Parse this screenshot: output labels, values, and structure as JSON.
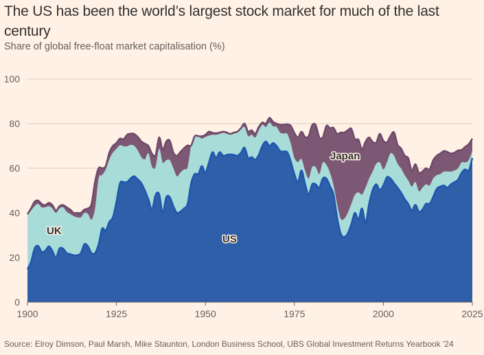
{
  "header": {
    "title": "The US has been the world’s largest stock market for much of the last century",
    "subtitle": "Share of global free-float market capitalisation (%)"
  },
  "footer": {
    "source": "Source: Elroy Dimson, Paul Marsh, Mike Staunton, London Business School, UBS Global Investment Returns Yearbook '24"
  },
  "colors": {
    "background": "#fff1e5",
    "us_fill": "#2e5fa8",
    "us_line": "#1f56ad",
    "uk_fill": "#a8dcd9",
    "uk_line": "#a8dcd9",
    "japan_fill": "#7d5875",
    "japan_line": "#6e4a68",
    "grid": "#d9cbbf",
    "axis": "#66605c"
  },
  "chart_data": {
    "type": "area",
    "stacked": true,
    "title": "The US has been the world’s largest stock market for much of the last century",
    "subtitle": "Share of global free-float market capitalisation (%)",
    "xlabel": "",
    "ylabel": "",
    "xlim": [
      1900,
      2025
    ],
    "ylim": [
      0,
      100
    ],
    "x_ticks": [
      "1900",
      "1925",
      "1950",
      "1975",
      "2000",
      "2025"
    ],
    "y_ticks": [
      "0",
      "20",
      "40",
      "60",
      "80",
      "100"
    ],
    "grid": true,
    "legend": "inline labels",
    "annotations": [
      "US",
      "UK",
      "Japan"
    ],
    "x": [
      1900,
      1901,
      1902,
      1903,
      1904,
      1905,
      1906,
      1907,
      1908,
      1909,
      1910,
      1911,
      1912,
      1913,
      1914,
      1915,
      1916,
      1917,
      1918,
      1919,
      1920,
      1921,
      1922,
      1923,
      1924,
      1925,
      1926,
      1927,
      1928,
      1929,
      1930,
      1931,
      1932,
      1933,
      1934,
      1935,
      1936,
      1937,
      1938,
      1939,
      1940,
      1941,
      1942,
      1943,
      1944,
      1945,
      1946,
      1947,
      1948,
      1949,
      1950,
      1951,
      1952,
      1953,
      1954,
      1955,
      1956,
      1957,
      1958,
      1959,
      1960,
      1961,
      1962,
      1963,
      1964,
      1965,
      1966,
      1967,
      1968,
      1969,
      1970,
      1971,
      1972,
      1973,
      1974,
      1975,
      1976,
      1977,
      1978,
      1979,
      1980,
      1981,
      1982,
      1983,
      1984,
      1985,
      1986,
      1987,
      1988,
      1989,
      1990,
      1991,
      1992,
      1993,
      1994,
      1995,
      1996,
      1997,
      1998,
      1999,
      2000,
      2001,
      2002,
      2003,
      2004,
      2005,
      2006,
      2007,
      2008,
      2009,
      2010,
      2011,
      2012,
      2013,
      2014,
      2015,
      2016,
      2017,
      2018,
      2019,
      2020,
      2021,
      2022,
      2023,
      2024,
      2025
    ],
    "series": [
      {
        "name": "US",
        "label": "US",
        "values": [
          14.8,
          18,
          24,
          25.2,
          22.5,
          23,
          25,
          23,
          20,
          24,
          24,
          22,
          21.5,
          21,
          21,
          22,
          26,
          25,
          22,
          22,
          26,
          33,
          32,
          36,
          38,
          45,
          53.3,
          53.8,
          53.8,
          55.5,
          56.4,
          55,
          53.3,
          50,
          46,
          41.5,
          48,
          48.4,
          40,
          47,
          47,
          43,
          40,
          40.6,
          42,
          44,
          53.3,
          57.4,
          57.4,
          61,
          58,
          62.6,
          67.2,
          64.6,
          67.2,
          65.6,
          66,
          66.2,
          66,
          65.6,
          67,
          69.2,
          64.6,
          65,
          63.8,
          66,
          70,
          72,
          70,
          71.3,
          70,
          67.7,
          67.5,
          67.2,
          63,
          57.4,
          53.8,
          59,
          53,
          48.2,
          52.8,
          52.8,
          51.3,
          55.4,
          55.4,
          52,
          48.2,
          38,
          30.8,
          29.2,
          30.8,
          35,
          40,
          36.9,
          42,
          35.5,
          44.1,
          50.3,
          52.8,
          50.3,
          52.3,
          56,
          55.4,
          53.3,
          51.3,
          49,
          46.2,
          44,
          41,
          43.6,
          40.5,
          41.5,
          44.1,
          44.1,
          47.2,
          50.8,
          51.8,
          52.3,
          51.3,
          52.8,
          53.8,
          54.9,
          58,
          59.5,
          59,
          64.6
        ]
      },
      {
        "name": "UK",
        "label": "UK",
        "values": [
          24.2,
          23,
          19,
          18.8,
          20,
          19.5,
          18,
          19,
          20,
          18,
          18.5,
          18.5,
          18,
          17.5,
          17,
          16,
          14,
          14.5,
          15,
          20,
          29.4,
          24,
          27.5,
          28,
          29,
          23.7,
          17,
          16,
          16,
          15,
          13.6,
          13,
          11.7,
          14,
          20.7,
          19.1,
          12.6,
          20.3,
          22.6,
          16.6,
          16.6,
          17,
          16.4,
          17.5,
          17.5,
          16.5,
          16.9,
          17,
          17,
          12.3,
          16,
          12,
          7.8,
          10.4,
          8.2,
          10.3,
          9.5,
          8.8,
          9.5,
          10.4,
          10.5,
          9.3,
          9.8,
          10,
          10,
          11,
          9.5,
          6.5,
          10.5,
          7.5,
          8.5,
          8.3,
          8,
          8.2,
          8,
          7.2,
          9,
          5.1,
          6,
          7.2,
          7.7,
          7.7,
          6.1,
          7.2,
          6.1,
          6,
          4.1,
          6,
          6.6,
          8.2,
          9.2,
          9,
          8,
          12.3,
          6.2,
          15.8,
          11.3,
          8.2,
          9.2,
          12.3,
          7.2,
          6.6,
          11.3,
          12.3,
          10.7,
          10.8,
          10.7,
          10.5,
          10.8,
          10.2,
          9.2,
          9.8,
          8.7,
          8.2,
          8.2,
          6.1,
          5.6,
          6.2,
          7.2,
          5.7,
          5.2,
          5.1,
          4.6,
          3.1,
          4.6,
          3.1
        ]
      },
      {
        "name": "Japan",
        "label": "Japan",
        "values": [
          0.4,
          1,
          2,
          1.5,
          1.5,
          1,
          1.5,
          1.5,
          1,
          1,
          1,
          2,
          2,
          1.5,
          2,
          2,
          1.5,
          2.5,
          7,
          12,
          4.6,
          3,
          1.5,
          3,
          3,
          2.6,
          3,
          3.2,
          5.2,
          5,
          5.4,
          6,
          7,
          7,
          3.3,
          5.9,
          5.3,
          5.1,
          5.7,
          8.4,
          8.7,
          7,
          9.2,
          9.2,
          9.5,
          9.7,
          0,
          0,
          0,
          1,
          1,
          1.8,
          0.9,
          0.7,
          0.6,
          0.5,
          0.5,
          0.4,
          0.5,
          0.4,
          0.5,
          1.5,
          2,
          2,
          1.6,
          1.5,
          1,
          1.5,
          2.1,
          2,
          1.5,
          3.5,
          4,
          4.3,
          8,
          11.2,
          11,
          12.3,
          15,
          19,
          18.8,
          18.8,
          16.5,
          11.3,
          17.5,
          20,
          25.8,
          31.4,
          38.6,
          38.6,
          37,
          33.7,
          25,
          23.6,
          20.3,
          20.6,
          18.4,
          13.3,
          9.5,
          12.8,
          12.8,
          9,
          7.7,
          10.5,
          8.5,
          9,
          8.7,
          10,
          7,
          8,
          8.2,
          7.3,
          7.2,
          7.2,
          8.2,
          8.7,
          9.2,
          9.2,
          8.8,
          8.1,
          8,
          8,
          5.6,
          7,
          7.2,
          5.6
        ]
      }
    ]
  }
}
